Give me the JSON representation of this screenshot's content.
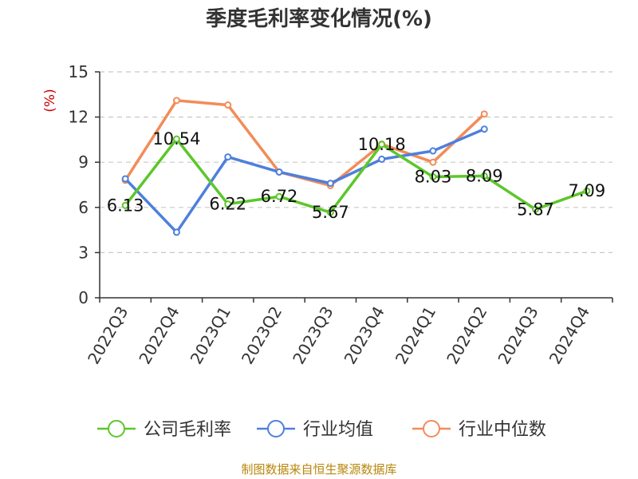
{
  "chart_data": {
    "type": "line",
    "title": "季度毛利率变化情况(%)",
    "ylabel": "(%)",
    "ylim": [
      0,
      15
    ],
    "yticks": [
      "0",
      "3",
      "6",
      "9",
      "12",
      "15"
    ],
    "grid": true,
    "legend_position": "bottom",
    "categories": [
      "2022Q3",
      "2022Q4",
      "2023Q1",
      "2023Q2",
      "2023Q3",
      "2023Q4",
      "2024Q1",
      "2024Q2",
      "2024Q3",
      "2024Q4"
    ],
    "series": [
      {
        "name": "公司毛利率",
        "color": "#5cc72a",
        "values": [
          6.13,
          10.54,
          6.22,
          6.72,
          5.67,
          10.18,
          8.03,
          8.09,
          5.87,
          7.09
        ],
        "labels": [
          "6.13",
          "10.54",
          "6.22",
          "6.72",
          "5.67",
          "10.18",
          "8.03",
          "8.09",
          "5.87",
          "7.09"
        ]
      },
      {
        "name": "行业均值",
        "color": "#4e7fdc",
        "values": [
          7.9,
          4.35,
          9.35,
          8.35,
          7.6,
          9.2,
          9.75,
          11.2,
          null,
          null
        ]
      },
      {
        "name": "行业中位数",
        "color": "#f28c58",
        "values": [
          7.8,
          13.1,
          12.8,
          8.35,
          7.45,
          10.2,
          9.0,
          12.2,
          null,
          null
        ]
      }
    ],
    "source": "制图数据来自恒生聚源数据库"
  }
}
